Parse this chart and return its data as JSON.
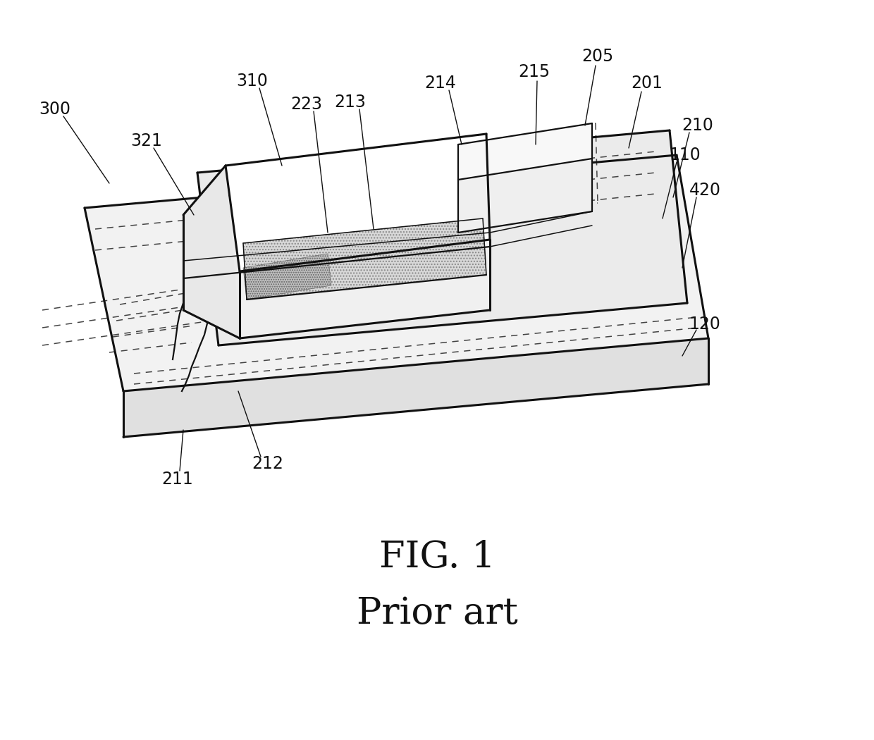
{
  "title_line1": "FIG. 1",
  "title_line2": "Prior art",
  "title_fontsize": 38,
  "background_color": "#ffffff",
  "line_color": "#111111",
  "dashed_color": "#444444",
  "label_fontsize": 17,
  "lw_thick": 2.2,
  "lw_main": 1.6,
  "lw_thin": 1.1,
  "lw_label": 1.0
}
